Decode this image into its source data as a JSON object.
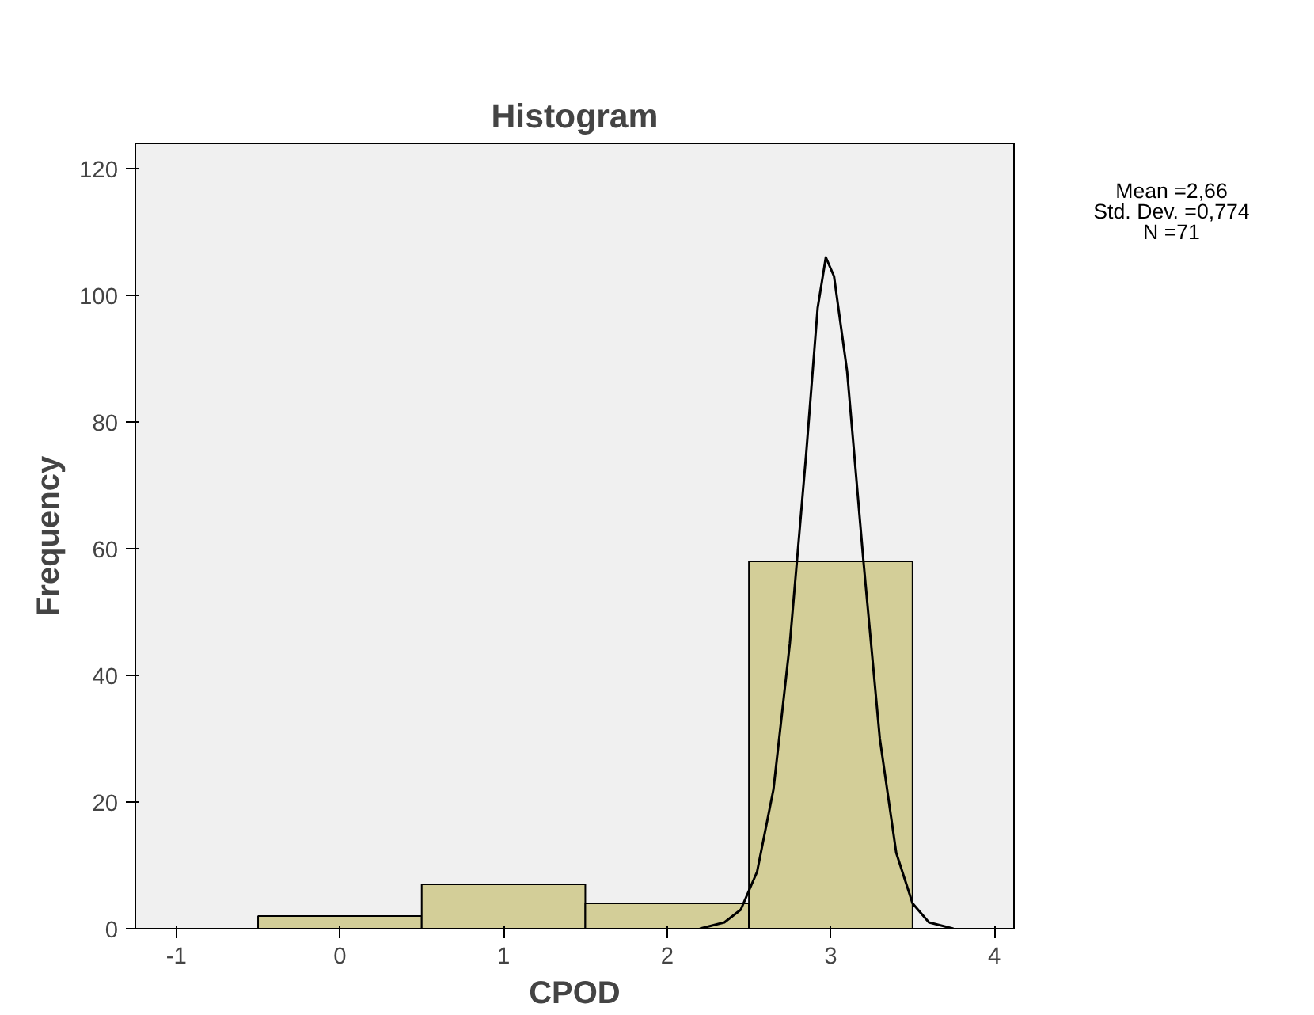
{
  "chart_data": {
    "type": "histogram",
    "title": "Histogram",
    "xlabel": "CPOD",
    "ylabel": "Frequency",
    "bins": [
      -0.5,
      0.5,
      1.5,
      2.5,
      3.5
    ],
    "values": [
      2,
      7,
      4,
      58
    ],
    "color": "#d3ce98",
    "series": [
      {
        "type": "line",
        "color": "#000000",
        "x": [
          2.2,
          2.35,
          2.45,
          2.55,
          2.65,
          2.75,
          2.85,
          2.92,
          2.97,
          3.02,
          3.1,
          3.2,
          3.3,
          3.4,
          3.5,
          3.6,
          3.75
        ],
        "values": [
          0,
          1,
          3,
          9,
          22,
          45,
          75,
          98,
          106,
          103,
          88,
          58,
          30,
          12,
          4,
          1,
          0
        ]
      }
    ],
    "xlim": [
      -1.25,
      4.12
    ],
    "ylim": [
      0,
      124
    ],
    "xticks": [
      -1,
      0,
      1,
      2,
      3,
      4
    ],
    "yticks": [
      0,
      20,
      40,
      60,
      80,
      100,
      120
    ],
    "grid": false,
    "annotations": [
      "Mean =2,66",
      "Std. Dev. =0,774",
      "N =71"
    ]
  }
}
